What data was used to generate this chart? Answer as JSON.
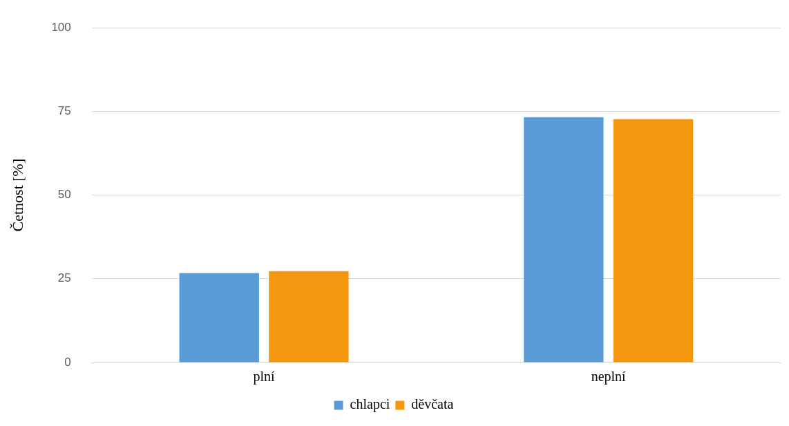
{
  "chart_data": {
    "type": "bar",
    "ylabel": "Četnost [%]",
    "categories": [
      "plní",
      "neplní"
    ],
    "series": [
      {
        "name": "chlapci",
        "color": "#5b9bd5",
        "values": [
          26.7,
          73.3
        ]
      },
      {
        "name": "děvčata",
        "color": "#f4970f",
        "values": [
          27.3,
          72.7
        ]
      }
    ],
    "ylim": [
      0,
      100
    ],
    "yticks": [
      0,
      25,
      50,
      75,
      100
    ],
    "grid": "y",
    "legend": "bottom"
  }
}
